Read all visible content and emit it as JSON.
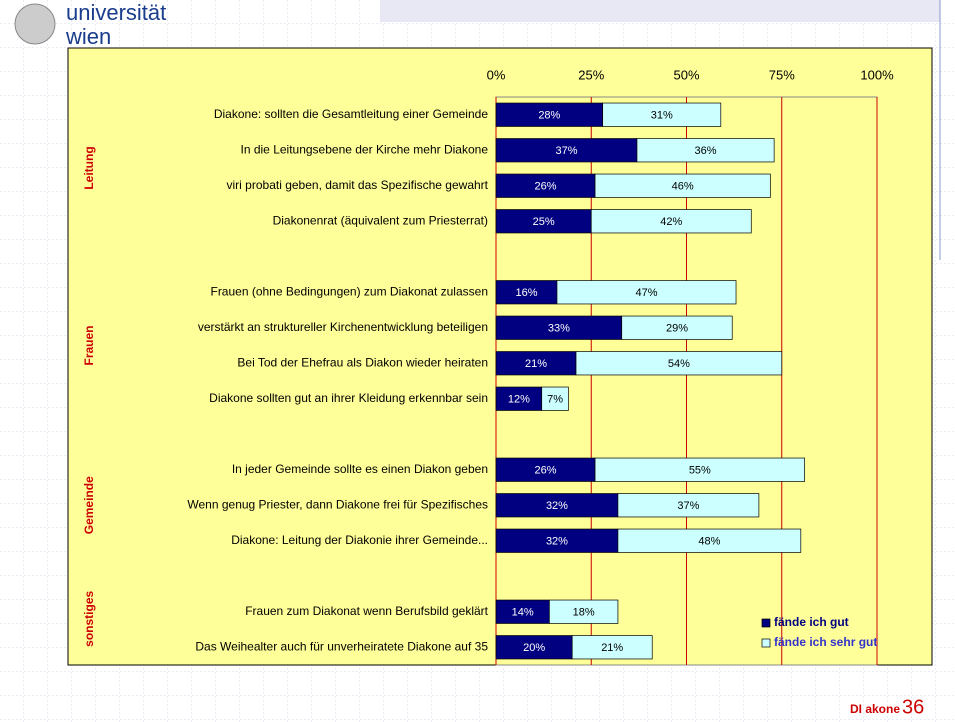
{
  "slide": {
    "logo_line1": "universität",
    "logo_line2": "wien",
    "footer_text": "DI akone",
    "page_number": "36"
  },
  "chart_data": {
    "type": "bar",
    "orientation": "horizontal",
    "stacked": true,
    "groups": [
      "Leitung",
      "Frauen",
      "Gemeinde",
      "sonstiges"
    ],
    "categories": [
      "Diakone: sollten die Gesamtleitung einer Gemeinde",
      "In die Leitungsebene der Kirche mehr Diakone",
      "viri probati geben, damit das Spezifische gewahrt",
      "Diakonenrat (äquivalent zum Priesterrat)",
      null,
      "Frauen (ohne Bedingungen) zum Diakonat zulassen",
      "verstärkt an struktureller Kirchenentwicklung beteiligen",
      "Bei Tod der Ehefrau als Diakon wieder heiraten",
      "Diakone sollten gut an ihrer Kleidung erkennbar sein",
      null,
      "In jeder Gemeinde sollte es einen Diakon geben",
      "Wenn genug Priester, dann Diakone frei für Spezifisches",
      "Diakone:  Leitung der Diakonie ihrer Gemeinde...",
      null,
      "Frauen zum Diakonat wenn Berufsbild geklärt",
      "Das Weihealter auch für unverheiratete Diakone auf 35"
    ],
    "series": [
      {
        "name": "fände ich gut",
        "color": "#000080",
        "values": [
          28,
          37,
          26,
          25,
          null,
          16,
          33,
          21,
          12,
          null,
          26,
          32,
          32,
          null,
          14,
          20
        ],
        "value_labels": [
          "28%",
          "37%",
          "26%",
          "25%",
          null,
          "16%",
          "33%",
          "21%",
          "12%",
          null,
          "26%",
          "32%",
          "32%",
          null,
          "14%",
          "20%"
        ]
      },
      {
        "name": "fände ich sehr gut",
        "color": "#ccffff",
        "values": [
          31,
          36,
          46,
          42,
          null,
          47,
          29,
          54,
          7,
          null,
          55,
          37,
          48,
          null,
          18,
          21
        ],
        "value_labels": [
          "31%",
          "36%",
          "46%",
          "42%",
          null,
          "47%",
          "29%",
          "54%",
          "7%",
          null,
          "55%",
          "37%",
          "48%",
          null,
          "18%",
          "21%"
        ]
      }
    ],
    "xlim": [
      0,
      100
    ],
    "xticks": [
      {
        "value": 0,
        "label": "0%"
      },
      {
        "value": 25,
        "label": "25%"
      },
      {
        "value": 50,
        "label": "50%"
      },
      {
        "value": 75,
        "label": "75%"
      },
      {
        "value": 100,
        "label": "100%"
      }
    ],
    "grid": true,
    "grid_color": "#cc0000",
    "legend": "lower right",
    "background": "#ffff99"
  }
}
